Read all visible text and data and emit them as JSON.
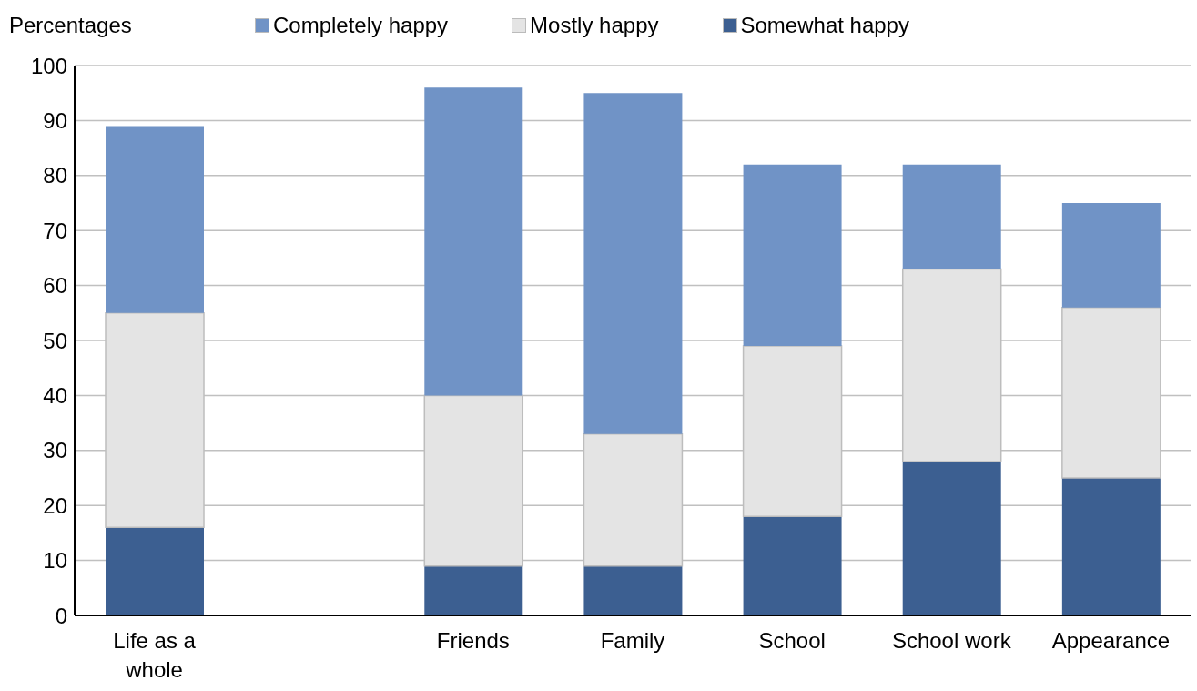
{
  "chart_data": {
    "type": "bar",
    "stacked": true,
    "ylabel": "Percentages",
    "categories": [
      "Life as a whole",
      null,
      "Friends",
      "Family",
      "School",
      "School work",
      "Appearance"
    ],
    "series": [
      {
        "name": "Somewhat happy",
        "color": "#3c5f91",
        "values": [
          16,
          null,
          9,
          9,
          18,
          28,
          25
        ]
      },
      {
        "name": "Mostly happy",
        "color": "#e4e4e4",
        "values": [
          39,
          null,
          31,
          24,
          31,
          35,
          31
        ]
      },
      {
        "name": "Completely happy",
        "color": "#7093c6",
        "values": [
          34,
          null,
          56,
          62,
          33,
          19,
          19
        ]
      }
    ],
    "ylim": [
      0,
      100
    ],
    "yticks": [
      0,
      10,
      20,
      30,
      40,
      50,
      60,
      70,
      80,
      90,
      100
    ],
    "grid": "y",
    "legend": "top"
  }
}
